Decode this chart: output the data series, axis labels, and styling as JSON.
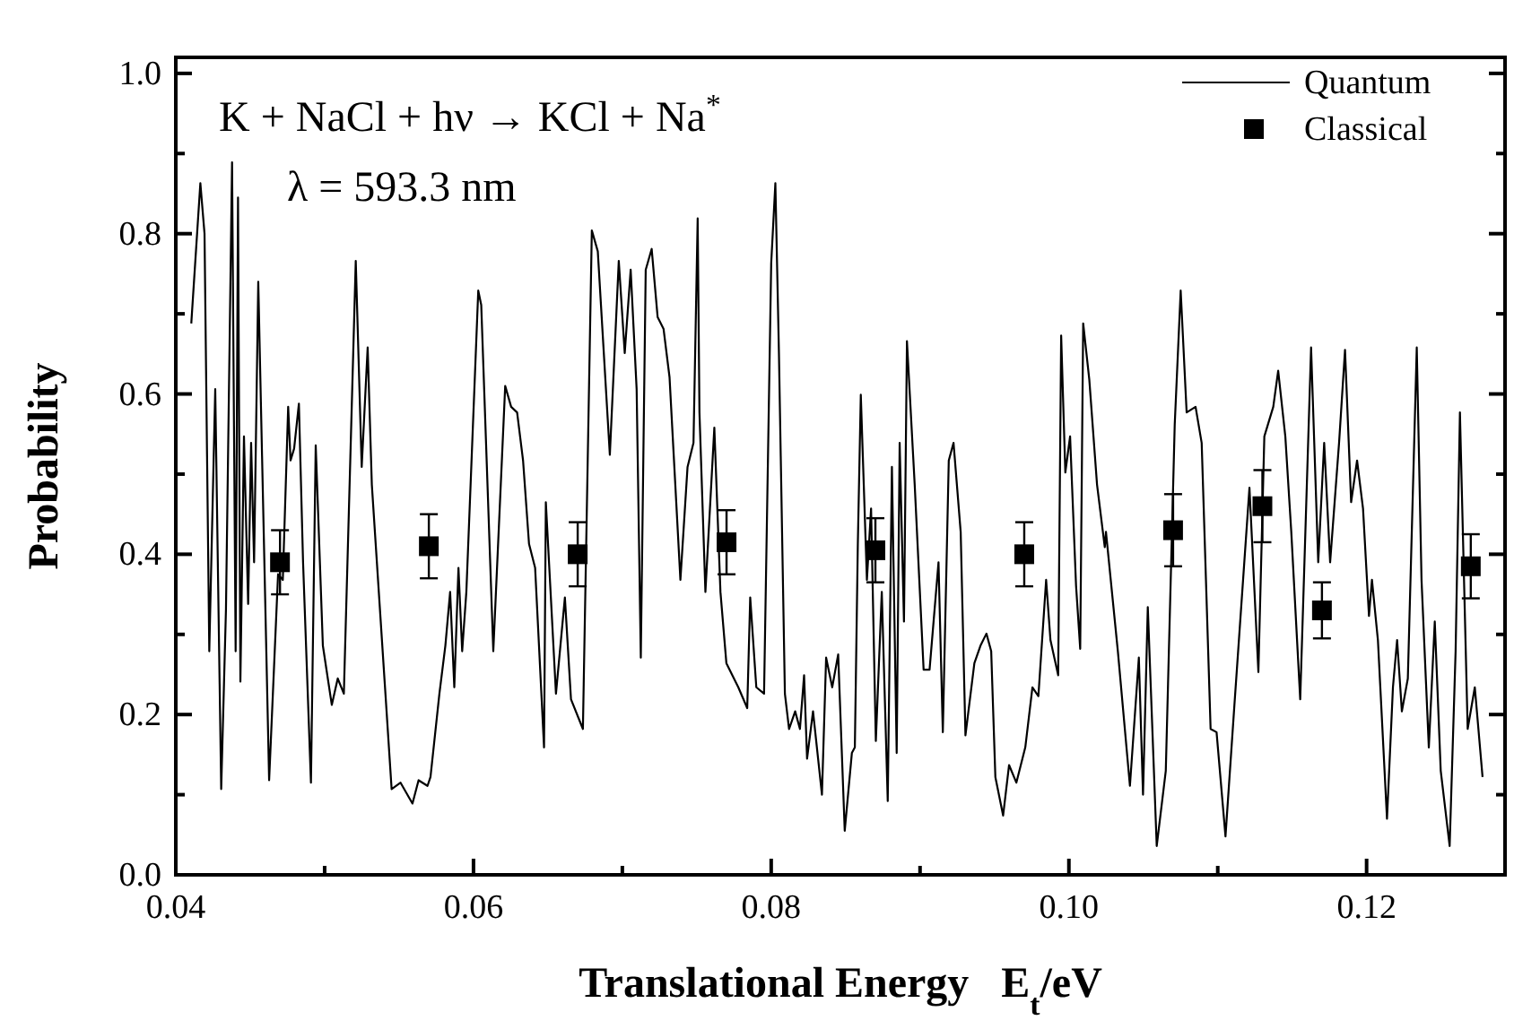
{
  "chart_data": {
    "type": "line",
    "xlabel": "Translational Energy   E$_{t}$/eV",
    "ylabel": "Probability",
    "annotations": [
      "K + NaCl + hν → KCl + Na$^{*}$",
      "λ = 593.3 nm"
    ],
    "xlim": [
      0.04,
      0.1293
    ],
    "ylim": [
      0,
      1.02
    ],
    "xticks": [
      {
        "value": 0.04,
        "label": "0.04"
      },
      {
        "value": 0.05,
        "label": null
      },
      {
        "value": 0.06,
        "label": "0.06"
      },
      {
        "value": 0.07,
        "label": null
      },
      {
        "value": 0.08,
        "label": "0.08"
      },
      {
        "value": 0.09,
        "label": null
      },
      {
        "value": 0.1,
        "label": "0.10"
      },
      {
        "value": 0.11,
        "label": null
      },
      {
        "value": 0.12,
        "label": "0.12"
      }
    ],
    "yticks": [
      {
        "value": 0,
        "label": "0.0"
      },
      {
        "value": 0.1,
        "label": null
      },
      {
        "value": 0.2,
        "label": "0.2"
      },
      {
        "value": 0.3,
        "label": null
      },
      {
        "value": 0.4,
        "label": "0.4"
      },
      {
        "value": 0.5,
        "label": null
      },
      {
        "value": 0.6,
        "label": "0.6"
      },
      {
        "value": 0.7,
        "label": null
      },
      {
        "value": 0.8,
        "label": "0.8"
      },
      {
        "value": 0.9,
        "label": null
      },
      {
        "value": 1,
        "label": "1.0"
      }
    ],
    "legend": "top right",
    "grid": false,
    "series": [
      {
        "name": "Quantum",
        "color": "#000000",
        "line_style": "solid",
        "marker": "none",
        "x": [
          0.04104,
          0.04165,
          0.04193,
          0.04225,
          0.04265,
          0.04305,
          0.04337,
          0.04378,
          0.04402,
          0.04418,
          0.04434,
          0.04458,
          0.04486,
          0.04506,
          0.04526,
          0.04554,
          0.04627,
          0.04687,
          0.04719,
          0.04755,
          0.04771,
          0.04795,
          0.04827,
          0.04855,
          0.04908,
          0.0494,
          0.04988,
          0.05048,
          0.05088,
          0.05129,
          0.05209,
          0.05249,
          0.05289,
          0.05317,
          0.0545,
          0.0551,
          0.0559,
          0.05631,
          0.05691,
          0.05711,
          0.05771,
          0.05811,
          0.05843,
          0.05871,
          0.05899,
          0.05924,
          0.05952,
          0.06032,
          0.06052,
          0.06133,
          0.06213,
          0.06253,
          0.06293,
          0.06333,
          0.06373,
          0.06414,
          0.06474,
          0.06486,
          0.06554,
          0.06614,
          0.06655,
          0.06735,
          0.06795,
          0.06835,
          0.06916,
          0.06976,
          0.07016,
          0.07056,
          0.07096,
          0.07124,
          0.07157,
          0.07197,
          0.07237,
          0.07277,
          0.07317,
          0.0739,
          0.07438,
          0.07478,
          0.07506,
          0.07518,
          0.07558,
          0.07618,
          0.07659,
          0.07699,
          0.07779,
          0.07839,
          0.07859,
          0.079,
          0.07952,
          0.08,
          0.08028,
          0.08052,
          0.08092,
          0.0812,
          0.08161,
          0.08193,
          0.08221,
          0.08241,
          0.08281,
          0.08341,
          0.08369,
          0.0841,
          0.0845,
          0.08494,
          0.08542,
          0.08562,
          0.08582,
          0.08602,
          0.08643,
          0.08671,
          0.08703,
          0.08743,
          0.08783,
          0.08811,
          0.08843,
          0.08863,
          0.08892,
          0.08912,
          0.08964,
          0.09024,
          0.09064,
          0.09124,
          0.09153,
          0.09193,
          0.09225,
          0.09273,
          0.09305,
          0.09365,
          0.09406,
          0.09446,
          0.09478,
          0.09506,
          0.09558,
          0.09598,
          0.09647,
          0.09707,
          0.09755,
          0.09795,
          0.09847,
          0.09876,
          0.09928,
          0.09948,
          0.09976,
          0.10008,
          0.10048,
          0.10076,
          0.10096,
          0.10137,
          0.10189,
          0.10241,
          0.10249,
          0.10329,
          0.1041,
          0.1047,
          0.10498,
          0.1053,
          0.1059,
          0.10651,
          0.10711,
          0.10751,
          0.10791,
          0.10851,
          0.10892,
          0.10952,
          0.10992,
          0.11052,
          0.11112,
          0.11213,
          0.11273,
          0.11313,
          0.11373,
          0.11406,
          0.11454,
          0.11494,
          0.11554,
          0.11627,
          0.11675,
          0.11715,
          0.11755,
          0.11815,
          0.11855,
          0.11896,
          0.11936,
          0.11976,
          0.12016,
          0.12036,
          0.12076,
          0.12137,
          0.12177,
          0.12205,
          0.12237,
          0.12277,
          0.12337,
          0.12369,
          0.12418,
          0.12458,
          0.12498,
          0.12558,
          0.12598,
          0.12627,
          0.12679,
          0.12727,
          0.12779
        ],
        "values": [
          0.688,
          0.863,
          0.8,
          0.279,
          0.606,
          0.107,
          0.331,
          0.889,
          0.279,
          0.845,
          0.241,
          0.547,
          0.338,
          0.539,
          0.39,
          0.74,
          0.118,
          0.375,
          0.368,
          0.584,
          0.517,
          0.532,
          0.588,
          0.39,
          0.115,
          0.536,
          0.286,
          0.212,
          0.245,
          0.226,
          0.766,
          0.509,
          0.658,
          0.487,
          0.107,
          0.115,
          0.089,
          0.118,
          0.111,
          0.122,
          0.226,
          0.286,
          0.353,
          0.234,
          0.383,
          0.279,
          0.353,
          0.729,
          0.711,
          0.279,
          0.61,
          0.584,
          0.577,
          0.517,
          0.413,
          0.383,
          0.159,
          0.465,
          0.226,
          0.346,
          0.219,
          0.182,
          0.804,
          0.778,
          0.524,
          0.766,
          0.651,
          0.755,
          0.606,
          0.271,
          0.755,
          0.781,
          0.696,
          0.681,
          0.621,
          0.368,
          0.509,
          0.539,
          0.819,
          0.577,
          0.353,
          0.558,
          0.353,
          0.264,
          0.234,
          0.208,
          0.346,
          0.234,
          0.226,
          0.763,
          0.863,
          0.651,
          0.226,
          0.182,
          0.204,
          0.182,
          0.249,
          0.145,
          0.204,
          0.1,
          0.271,
          0.234,
          0.275,
          0.055,
          0.152,
          0.159,
          0.413,
          0.599,
          0.368,
          0.457,
          0.167,
          0.353,
          0.092,
          0.509,
          0.152,
          0.539,
          0.316,
          0.666,
          0.487,
          0.256,
          0.256,
          0.39,
          0.178,
          0.517,
          0.539,
          0.428,
          0.174,
          0.264,
          0.286,
          0.301,
          0.279,
          0.122,
          0.074,
          0.137,
          0.115,
          0.159,
          0.234,
          0.223,
          0.368,
          0.293,
          0.249,
          0.673,
          0.502,
          0.547,
          0.361,
          0.282,
          0.688,
          0.618,
          0.487,
          0.409,
          0.428,
          0.279,
          0.111,
          0.271,
          0.1,
          0.334,
          0.036,
          0.13,
          0.562,
          0.729,
          0.577,
          0.584,
          0.539,
          0.182,
          0.178,
          0.048,
          0.212,
          0.483,
          0.253,
          0.547,
          0.584,
          0.629,
          0.547,
          0.428,
          0.219,
          0.658,
          0.39,
          0.539,
          0.39,
          0.539,
          0.655,
          0.465,
          0.517,
          0.457,
          0.323,
          0.368,
          0.293,
          0.07,
          0.234,
          0.293,
          0.204,
          0.245,
          0.658,
          0.368,
          0.159,
          0.316,
          0.13,
          0.036,
          0.279,
          0.577,
          0.182,
          0.234,
          0.122
        ]
      },
      {
        "name": "Classical",
        "type": "scatter",
        "color": "#000000",
        "marker": "square",
        "x": [
          0.047,
          0.057,
          0.067,
          0.077,
          0.087,
          0.097,
          0.107,
          0.113,
          0.117,
          0.127
        ],
        "values": [
          0.39,
          0.41,
          0.4,
          0.415,
          0.405,
          0.4,
          0.43,
          0.46,
          0.33,
          0.385
        ],
        "errors": [
          0.04,
          0.04,
          0.04,
          0.04,
          0.04,
          0.04,
          0.045,
          0.045,
          0.035,
          0.04
        ]
      }
    ]
  }
}
